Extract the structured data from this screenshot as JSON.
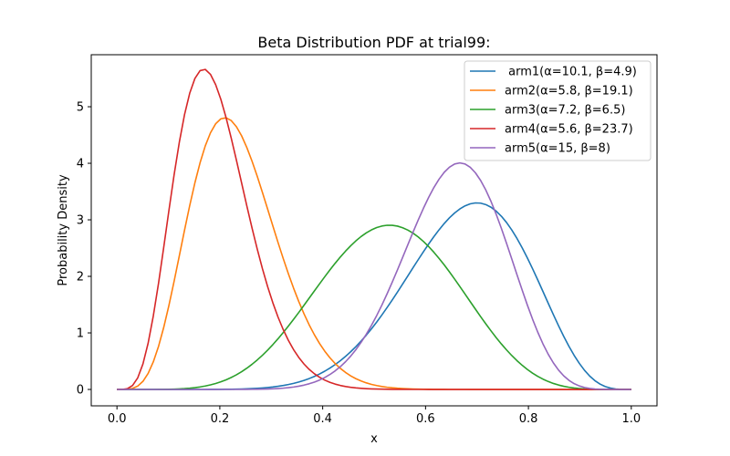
{
  "chart_data": {
    "type": "line",
    "title": "Beta Distribution PDF at trial99:",
    "xlabel": "x",
    "ylabel": "Probability Density",
    "xlim": [
      -0.05,
      1.05
    ],
    "ylim": [
      -0.29,
      5.92
    ],
    "xticks": [
      "0.0",
      "0.2",
      "0.4",
      "0.6",
      "0.8",
      "1.0"
    ],
    "yticks": [
      "0",
      "1",
      "2",
      "3",
      "4",
      "5"
    ],
    "grid": false,
    "legend_position": "top-right",
    "series": [
      {
        "name": " arm1(α=10.1, β=4.9)",
        "alpha": 10.1,
        "beta": 4.9,
        "color": "#1f77b4"
      },
      {
        "name": "arm2(α=5.8, β=19.1)",
        "alpha": 5.8,
        "beta": 19.1,
        "color": "#ff7f0e"
      },
      {
        "name": "arm3(α=7.2, β=6.5)",
        "alpha": 7.2,
        "beta": 6.5,
        "color": "#2ca02c"
      },
      {
        "name": "arm4(α=5.6, β=23.7)",
        "alpha": 5.6,
        "beta": 23.7,
        "color": "#d62728"
      },
      {
        "name": "arm5(α=15, β=8)",
        "alpha": 15,
        "beta": 8,
        "color": "#9467bd"
      }
    ]
  }
}
